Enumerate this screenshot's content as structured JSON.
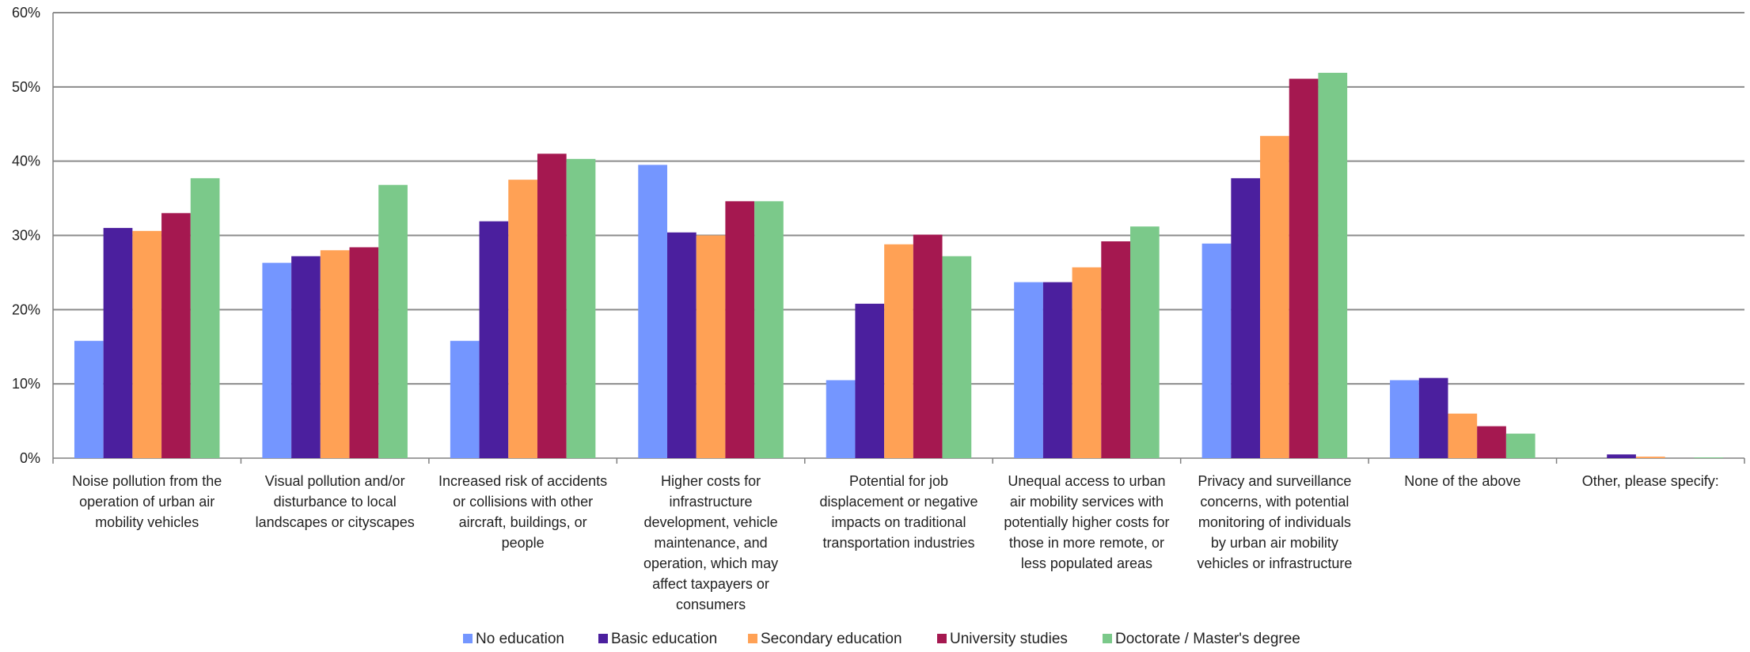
{
  "chart_data": {
    "type": "bar",
    "title": "",
    "xlabel": "",
    "ylabel": "",
    "ylim": [
      0,
      60
    ],
    "yticks": [
      "0%",
      "10%",
      "20%",
      "30%",
      "40%",
      "50%",
      "60%"
    ],
    "grid": true,
    "legend_position": "bottom",
    "categories": [
      [
        "Noise pollution from the",
        "operation of urban air",
        "mobility vehicles"
      ],
      [
        "Visual pollution and/or",
        "disturbance to local",
        "landscapes or cityscapes"
      ],
      [
        "Increased risk of accidents",
        "or collisions with other",
        "aircraft, buildings, or",
        "people"
      ],
      [
        "Higher costs for",
        "infrastructure",
        "development, vehicle",
        "maintenance, and",
        "operation, which may",
        "affect taxpayers or",
        "consumers"
      ],
      [
        "Potential for job",
        "displacement or negative",
        "impacts on traditional",
        "transportation industries"
      ],
      [
        "Unequal access to urban",
        "air mobility services with",
        "potentially higher costs for",
        "those in more remote, or",
        "less populated areas"
      ],
      [
        "Privacy and surveillance",
        "concerns, with potential",
        "monitoring of individuals",
        "by urban air mobility",
        "vehicles or infrastructure"
      ],
      [
        "None of the above"
      ],
      [
        "Other, please specify:"
      ]
    ],
    "series": [
      {
        "name": "No education",
        "color": "#7496FF",
        "values": [
          15.8,
          26.3,
          15.8,
          39.5,
          10.5,
          23.7,
          28.9,
          10.5,
          0
        ]
      },
      {
        "name": "Basic education",
        "color": "#4B1F9E",
        "values": [
          31.0,
          27.2,
          31.9,
          30.4,
          20.8,
          23.7,
          37.7,
          10.8,
          0.5
        ]
      },
      {
        "name": "Secondary education",
        "color": "#FFA155",
        "values": [
          30.6,
          28.0,
          37.5,
          30.0,
          28.8,
          25.7,
          43.4,
          6.0,
          0.2
        ]
      },
      {
        "name": "University studies",
        "color": "#A51850",
        "values": [
          33.0,
          28.4,
          41.0,
          34.6,
          30.1,
          29.2,
          51.1,
          4.3,
          0
        ]
      },
      {
        "name": "Doctorate / Master's degree",
        "color": "#7BC98A",
        "values": [
          37.7,
          36.8,
          40.3,
          34.6,
          27.2,
          31.2,
          51.9,
          3.3,
          0.1
        ]
      }
    ]
  }
}
